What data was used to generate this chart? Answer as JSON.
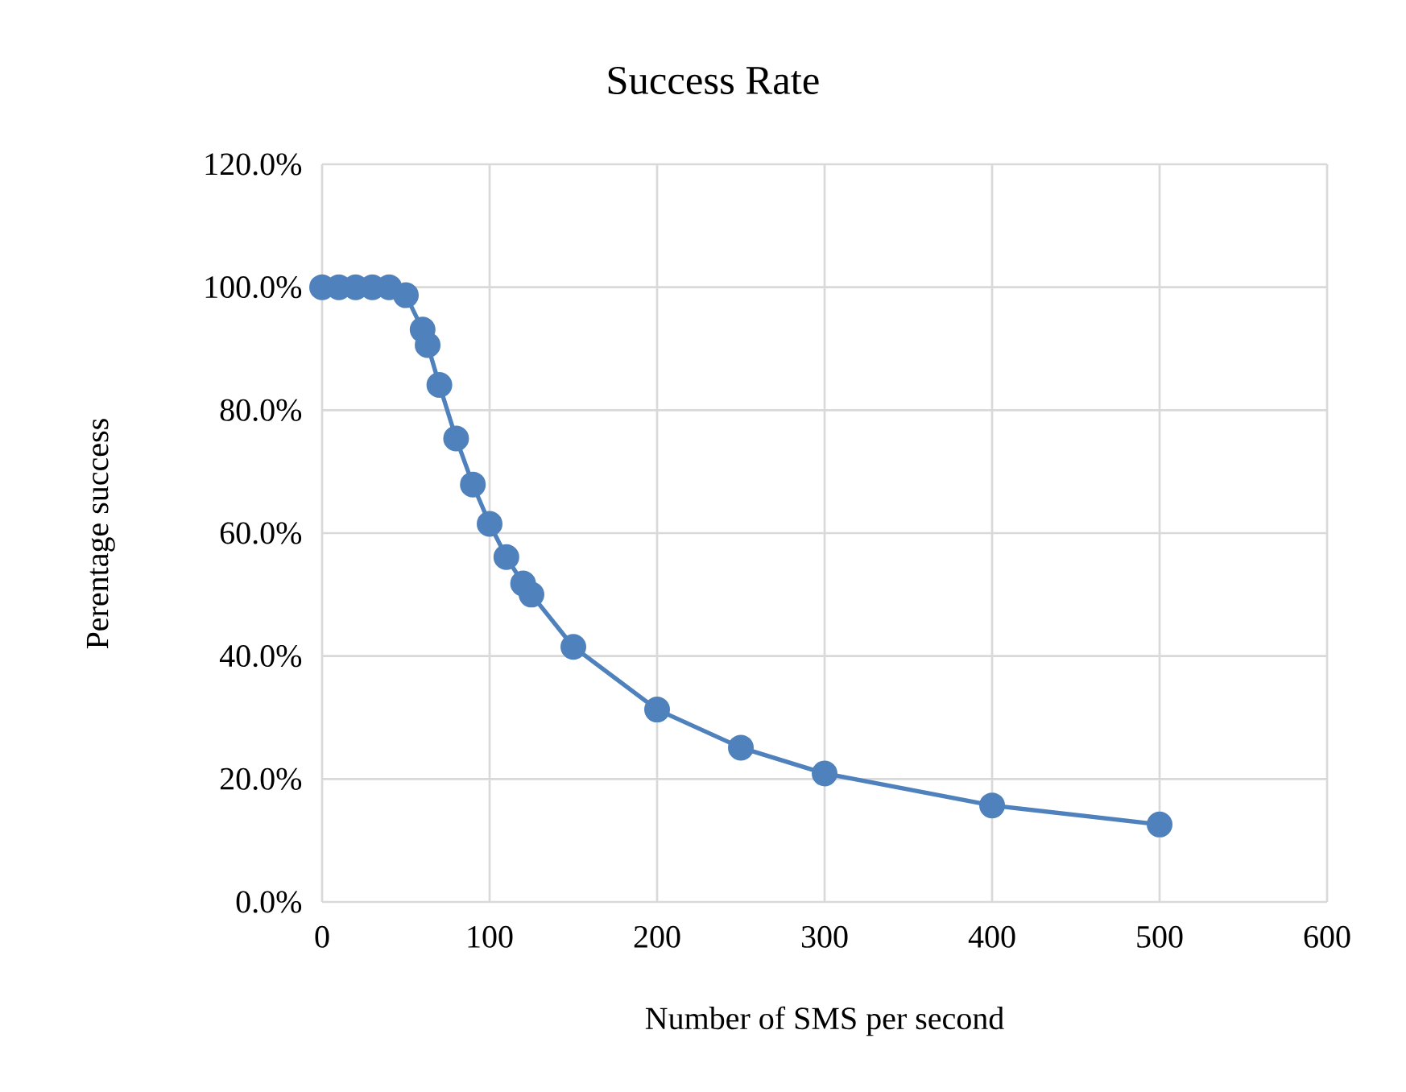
{
  "chart_data": {
    "type": "line",
    "title": "Success Rate",
    "xlabel": "Number of SMS per second",
    "ylabel": "Perentage success",
    "x": [
      0,
      10,
      20,
      30,
      40,
      50,
      60,
      63,
      70,
      80,
      90,
      100,
      110,
      120,
      125,
      150,
      200,
      250,
      300,
      400,
      500
    ],
    "series": [
      {
        "color": "#4f81bd",
        "values": [
          100,
          100,
          100,
          100,
          100,
          98.7,
          93.1,
          90.6,
          84.1,
          75.4,
          67.9,
          61.5,
          56.1,
          51.8,
          50.0,
          41.5,
          31.3,
          25.1,
          20.9,
          15.7,
          12.6
        ]
      }
    ],
    "xlim": [
      0,
      600
    ],
    "xticks": [
      0,
      100,
      200,
      300,
      400,
      500,
      600
    ],
    "ylim": [
      0,
      120
    ],
    "yticks": [
      {
        "value": 0,
        "label": "0.0%"
      },
      {
        "value": 20,
        "label": "20.0%"
      },
      {
        "value": 40,
        "label": "40.0%"
      },
      {
        "value": 60,
        "label": "60.0%"
      },
      {
        "value": 80,
        "label": "80.0%"
      },
      {
        "value": 100,
        "label": "100.0%"
      },
      {
        "value": 120,
        "label": "120.0%"
      }
    ],
    "grid": true,
    "marker": "circle",
    "line_style": "solid"
  }
}
